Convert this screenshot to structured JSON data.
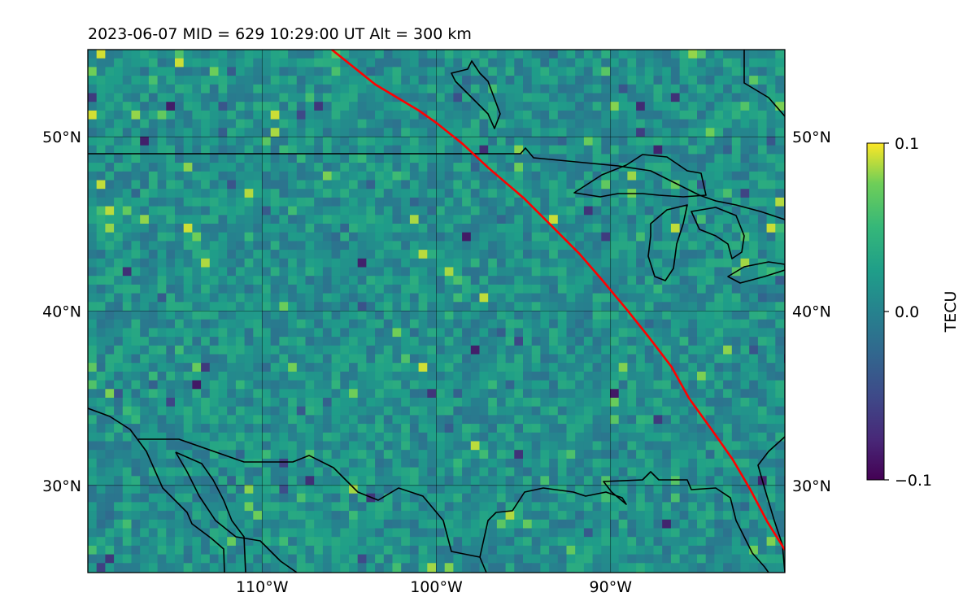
{
  "title": "2023-06-07  MID = 629    10:29:00  UT  Alt = 300 km",
  "map": {
    "lon_range": [
      -120,
      -80
    ],
    "lat_range": [
      25,
      55
    ],
    "lat_ticks": [
      {
        "value": 30,
        "label": "30°N"
      },
      {
        "value": 40,
        "label": "40°N"
      },
      {
        "value": 50,
        "label": "50°N"
      }
    ],
    "lon_ticks": [
      {
        "value": -110,
        "label": "110°W"
      },
      {
        "value": -100,
        "label": "100°W"
      },
      {
        "value": -90,
        "label": "90°W"
      }
    ],
    "grid": true,
    "colormap": "viridis",
    "border_color": "#000000",
    "track_color": "#ff0000",
    "track": [
      [
        -106.0,
        55.0
      ],
      [
        -103.5,
        53.0
      ],
      [
        -101.0,
        51.5
      ],
      [
        -100.0,
        50.8
      ],
      [
        -98.5,
        49.6
      ],
      [
        -97.0,
        48.2
      ],
      [
        -95.0,
        46.5
      ],
      [
        -93.5,
        45.0
      ],
      [
        -91.8,
        43.3
      ],
      [
        -90.5,
        41.8
      ],
      [
        -89.0,
        40.0
      ],
      [
        -87.8,
        38.5
      ],
      [
        -86.5,
        36.8
      ],
      [
        -85.5,
        35.0
      ],
      [
        -84.2,
        33.2
      ],
      [
        -83.0,
        31.5
      ],
      [
        -82.0,
        29.8
      ],
      [
        -81.0,
        27.9
      ],
      [
        -80.0,
        26.3
      ]
    ]
  },
  "colorbar": {
    "label": "TECU",
    "min": -0.1,
    "max": 0.1,
    "ticks": [
      {
        "value": 0.1,
        "label": "0.1"
      },
      {
        "value": 0.0,
        "label": "0.0"
      },
      {
        "value": -0.1,
        "label": "−0.1"
      }
    ]
  }
}
